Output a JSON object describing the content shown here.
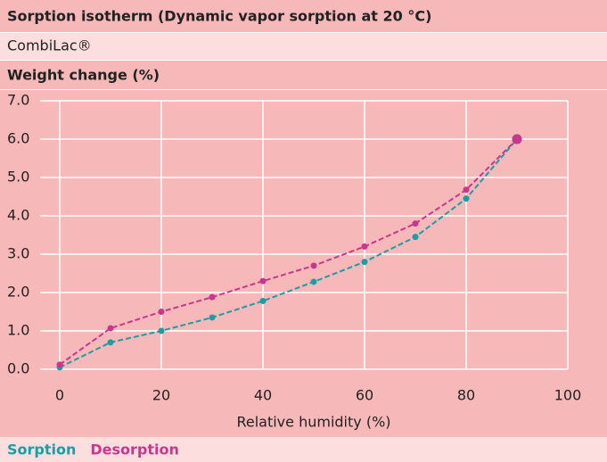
{
  "chart_data": {
    "type": "line",
    "title": "Sorption isotherm (Dynamic vapor sorption at 20 °C)",
    "subtitle": "CombiLac®",
    "y_label": "Weight change (%)",
    "x_label": "Relative humidity (%)",
    "x": [
      0,
      10,
      20,
      30,
      40,
      50,
      60,
      70,
      80,
      90
    ],
    "series": [
      {
        "name": "Sorption",
        "color": "#1a9ea6",
        "values": [
          0.05,
          0.7,
          1.0,
          1.35,
          1.78,
          2.28,
          2.8,
          3.45,
          4.45,
          6.0
        ]
      },
      {
        "name": "Desorption",
        "color": "#c8378f",
        "values": [
          0.12,
          1.07,
          1.5,
          1.88,
          2.3,
          2.7,
          3.2,
          3.8,
          4.68,
          6.0
        ]
      }
    ],
    "xlim": [
      0,
      100
    ],
    "xticks": [
      0,
      20,
      40,
      60,
      80,
      100
    ],
    "ylim": [
      0,
      7
    ],
    "yticks": [
      {
        "value": 0,
        "label": "0.0"
      },
      {
        "value": 1,
        "label": "1.0"
      },
      {
        "value": 2,
        "label": "2.0"
      },
      {
        "value": 3,
        "label": "3.0"
      },
      {
        "value": 4,
        "label": "4.0"
      },
      {
        "value": 5,
        "label": "5.0"
      },
      {
        "value": 6,
        "label": "6.0"
      },
      {
        "value": 7,
        "label": "7.0"
      }
    ],
    "grid": true,
    "background": "#f6b8b8"
  }
}
